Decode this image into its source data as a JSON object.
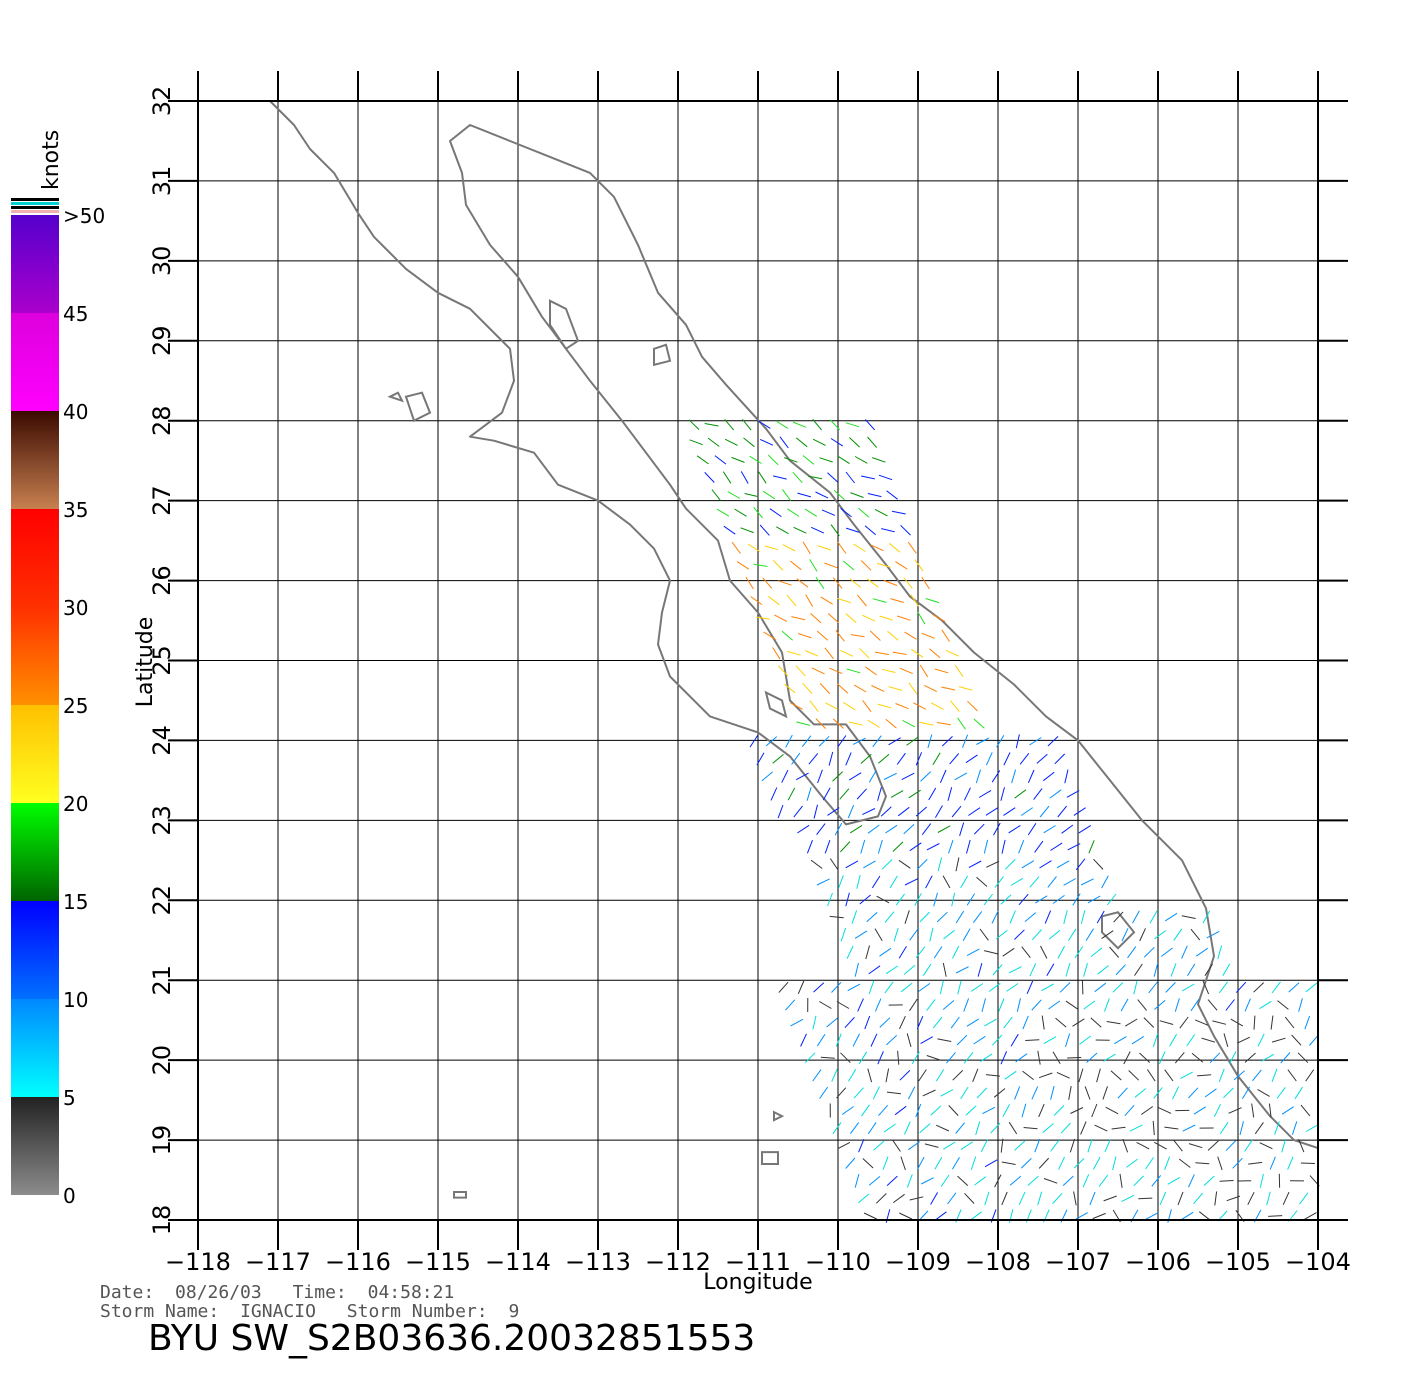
{
  "chart_data": {
    "type": "scatter",
    "subtype": "wind-vector-map",
    "xlabel": "Longitude",
    "ylabel": "Latitude",
    "xlim": [
      -118,
      -104
    ],
    "ylim": [
      18,
      32
    ],
    "x_ticks": [
      -118,
      -117,
      -116,
      -115,
      -114,
      -113,
      -112,
      -111,
      -110,
      -109,
      -108,
      -107,
      -106,
      -105,
      -104
    ],
    "x_tick_labels": [
      "−118",
      "−117",
      "−116",
      "−115",
      "−114",
      "−113",
      "−112",
      "−111",
      "−110",
      "−109",
      "−108",
      "−107",
      "−106",
      "−105",
      "−104"
    ],
    "y_ticks": [
      18,
      19,
      20,
      21,
      22,
      23,
      24,
      25,
      26,
      27,
      28,
      29,
      30,
      31,
      32
    ],
    "y_tick_labels": [
      "18",
      "19",
      "20",
      "21",
      "22",
      "23",
      "24",
      "25",
      "26",
      "27",
      "28",
      "29",
      "30",
      "31",
      "32"
    ],
    "grid": true,
    "colorbar": {
      "unit_label": "knots",
      "labels": [
        "0",
        "5",
        "10",
        "15",
        "20",
        "25",
        "30",
        "35",
        "40",
        "45",
        ">50"
      ],
      "bands": [
        {
          "from": 0,
          "to": 5,
          "colors": [
            "#8c8c8c",
            "#222222"
          ]
        },
        {
          "from": 5,
          "to": 10,
          "colors": [
            "#00ffff",
            "#0088ff"
          ]
        },
        {
          "from": 10,
          "to": 15,
          "colors": [
            "#0070ff",
            "#0000ff"
          ]
        },
        {
          "from": 15,
          "to": 20,
          "colors": [
            "#006400",
            "#00ff00"
          ]
        },
        {
          "from": 20,
          "to": 25,
          "colors": [
            "#ffff20",
            "#ffc000"
          ]
        },
        {
          "from": 25,
          "to": 30,
          "colors": [
            "#ff9000",
            "#ff3000"
          ]
        },
        {
          "from": 30,
          "to": 35,
          "colors": [
            "#ff3000",
            "#ff0000"
          ]
        },
        {
          "from": 35,
          "to": 40,
          "colors": [
            "#c88050",
            "#3a0a00"
          ]
        },
        {
          "from": 40,
          "to": 45,
          "colors": [
            "#ff00ff",
            "#dd00dd"
          ]
        },
        {
          "from": 45,
          "to": 50,
          "colors": [
            "#aa00cc",
            "#5500cc"
          ]
        }
      ]
    },
    "coastline": [
      [
        [
          -117.1,
          32.0
        ],
        [
          -116.8,
          31.7
        ],
        [
          -116.6,
          31.4
        ],
        [
          -116.3,
          31.1
        ],
        [
          -116.0,
          30.6
        ],
        [
          -115.8,
          30.3
        ],
        [
          -115.4,
          29.9
        ],
        [
          -115.0,
          29.6
        ],
        [
          -114.6,
          29.4
        ],
        [
          -114.1,
          28.9
        ],
        [
          -114.05,
          28.5
        ],
        [
          -114.2,
          28.1
        ],
        [
          -114.6,
          27.8
        ],
        [
          -114.3,
          27.75
        ],
        [
          -113.8,
          27.6
        ],
        [
          -113.5,
          27.2
        ],
        [
          -113.0,
          27.0
        ],
        [
          -112.6,
          26.7
        ],
        [
          -112.3,
          26.4
        ],
        [
          -112.1,
          26.0
        ],
        [
          -112.2,
          25.6
        ],
        [
          -112.25,
          25.2
        ],
        [
          -112.1,
          24.8
        ],
        [
          -111.6,
          24.3
        ],
        [
          -111.0,
          24.1
        ],
        [
          -110.6,
          23.8
        ],
        [
          -110.2,
          23.3
        ],
        [
          -109.9,
          22.95
        ],
        [
          -109.5,
          23.05
        ],
        [
          -109.4,
          23.3
        ],
        [
          -109.6,
          23.8
        ],
        [
          -109.9,
          24.2
        ],
        [
          -110.3,
          24.2
        ],
        [
          -110.6,
          24.5
        ],
        [
          -110.7,
          25.1
        ],
        [
          -111.0,
          25.6
        ],
        [
          -111.35,
          26.0
        ],
        [
          -111.5,
          26.5
        ],
        [
          -111.9,
          26.9
        ],
        [
          -112.1,
          27.2
        ],
        [
          -112.4,
          27.6
        ],
        [
          -112.7,
          28.0
        ],
        [
          -113.1,
          28.5
        ],
        [
          -113.4,
          28.9
        ],
        [
          -113.7,
          29.3
        ],
        [
          -114.0,
          29.8
        ],
        [
          -114.35,
          30.2
        ],
        [
          -114.65,
          30.7
        ],
        [
          -114.7,
          31.1
        ],
        [
          -114.85,
          31.5
        ],
        [
          -114.6,
          31.7
        ],
        [
          -114.1,
          31.5
        ],
        [
          -113.6,
          31.3
        ],
        [
          -113.1,
          31.1
        ],
        [
          -112.8,
          30.8
        ],
        [
          -112.5,
          30.2
        ],
        [
          -112.25,
          29.6
        ],
        [
          -111.9,
          29.2
        ],
        [
          -111.7,
          28.8
        ],
        [
          -111.4,
          28.45
        ],
        [
          -110.9,
          27.9
        ],
        [
          -110.6,
          27.5
        ],
        [
          -110.1,
          27.1
        ],
        [
          -109.8,
          26.7
        ],
        [
          -109.4,
          26.2
        ],
        [
          -109.1,
          25.8
        ],
        [
          -108.7,
          25.5
        ],
        [
          -108.3,
          25.1
        ],
        [
          -107.8,
          24.7
        ],
        [
          -107.4,
          24.3
        ],
        [
          -107.0,
          24.0
        ],
        [
          -106.6,
          23.5
        ],
        [
          -106.2,
          23.0
        ],
        [
          -105.7,
          22.5
        ],
        [
          -105.4,
          21.9
        ],
        [
          -105.3,
          21.3
        ],
        [
          -105.5,
          20.7
        ],
        [
          -105.3,
          20.3
        ],
        [
          -105.0,
          19.8
        ],
        [
          -104.6,
          19.3
        ],
        [
          -104.3,
          19.0
        ],
        [
          -104.0,
          18.9
        ]
      ]
    ],
    "islands": [
      [
        [
          -115.4,
          28.3
        ],
        [
          -115.2,
          28.35
        ],
        [
          -115.1,
          28.1
        ],
        [
          -115.3,
          28.0
        ],
        [
          -115.4,
          28.3
        ]
      ],
      [
        [
          -115.6,
          28.3
        ],
        [
          -115.5,
          28.35
        ],
        [
          -115.45,
          28.25
        ],
        [
          -115.6,
          28.3
        ]
      ],
      [
        [
          -113.6,
          29.5
        ],
        [
          -113.4,
          29.4
        ],
        [
          -113.25,
          29.0
        ],
        [
          -113.4,
          28.9
        ],
        [
          -113.6,
          29.2
        ],
        [
          -113.6,
          29.5
        ]
      ],
      [
        [
          -112.3,
          28.9
        ],
        [
          -112.15,
          28.95
        ],
        [
          -112.1,
          28.75
        ],
        [
          -112.3,
          28.7
        ],
        [
          -112.3,
          28.9
        ]
      ],
      [
        [
          -110.9,
          24.6
        ],
        [
          -110.7,
          24.5
        ],
        [
          -110.65,
          24.3
        ],
        [
          -110.85,
          24.4
        ],
        [
          -110.9,
          24.6
        ]
      ],
      [
        [
          -106.7,
          21.8
        ],
        [
          -106.5,
          21.85
        ],
        [
          -106.3,
          21.6
        ],
        [
          -106.5,
          21.4
        ],
        [
          -106.7,
          21.6
        ],
        [
          -106.7,
          21.8
        ]
      ],
      [
        [
          -110.95,
          18.85
        ],
        [
          -110.75,
          18.85
        ],
        [
          -110.75,
          18.7
        ],
        [
          -110.95,
          18.7
        ],
        [
          -110.95,
          18.85
        ]
      ],
      [
        [
          -110.8,
          19.35
        ],
        [
          -110.7,
          19.3
        ],
        [
          -110.8,
          19.25
        ],
        [
          -110.8,
          19.35
        ]
      ],
      [
        [
          -114.8,
          18.35
        ],
        [
          -114.65,
          18.35
        ],
        [
          -114.65,
          18.28
        ],
        [
          -114.8,
          18.28
        ],
        [
          -114.8,
          18.35
        ]
      ]
    ]
  },
  "footer": {
    "date_label": "Date:",
    "date_value": "08/26/03",
    "time_label": "Time:",
    "time_value": "04:58:21",
    "storm_name_label": "Storm Name:",
    "storm_name_value": "IGNACIO",
    "storm_number_label": "Storm Number:",
    "storm_number_value": "9",
    "file_title": "BYU SW_S2B03636.20032851553"
  }
}
